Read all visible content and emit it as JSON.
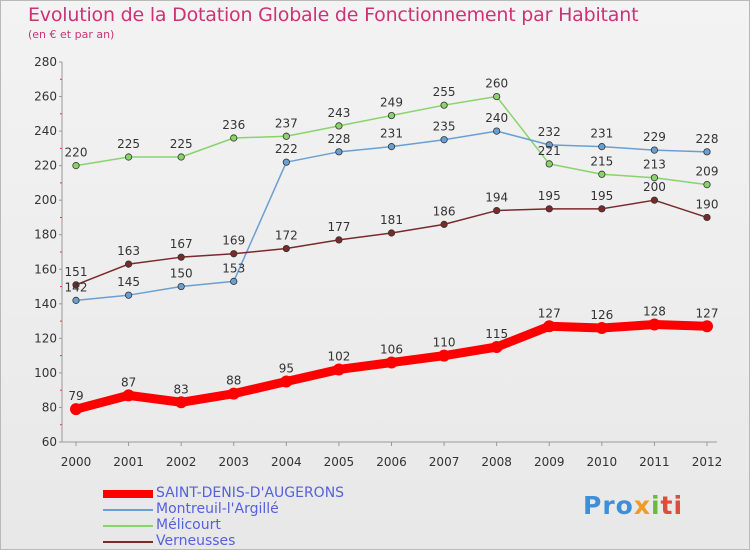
{
  "chart_data": {
    "type": "line",
    "title": "Evolution de la Dotation Globale de Fonctionnement par Habitant",
    "subtitle": "(en € et par an)",
    "x": [
      "2000",
      "2001",
      "2002",
      "2003",
      "2004",
      "2005",
      "2006",
      "2007",
      "2008",
      "2009",
      "2010",
      "2011",
      "2012"
    ],
    "ylim": [
      60,
      280
    ],
    "yticks": [
      60,
      80,
      100,
      120,
      140,
      160,
      180,
      200,
      220,
      240,
      260,
      280
    ],
    "grid": false,
    "legend_position": "bottom-left",
    "series": [
      {
        "name": "SAINT-DENIS-D'AUGERONS",
        "color": "#ff0000",
        "values": [
          79,
          87,
          83,
          88,
          95,
          102,
          106,
          110,
          115,
          127,
          126,
          128,
          127
        ]
      },
      {
        "name": "Montreuil-l'Argillé",
        "color": "#6a9fd4",
        "values": [
          142,
          145,
          150,
          153,
          222,
          228,
          231,
          235,
          240,
          232,
          231,
          229,
          228
        ]
      },
      {
        "name": "Mélicourt",
        "color": "#88d46a",
        "values": [
          220,
          225,
          225,
          236,
          237,
          243,
          249,
          255,
          260,
          221,
          215,
          213,
          209
        ]
      },
      {
        "name": "Verneusses",
        "color": "#7a2a2a",
        "values": [
          151,
          163,
          167,
          169,
          172,
          177,
          181,
          186,
          194,
          195,
          195,
          200,
          190
        ]
      }
    ]
  },
  "logo": {
    "p1": "Pro",
    "p2": "x",
    "p3": "i",
    "p4": "ti"
  }
}
